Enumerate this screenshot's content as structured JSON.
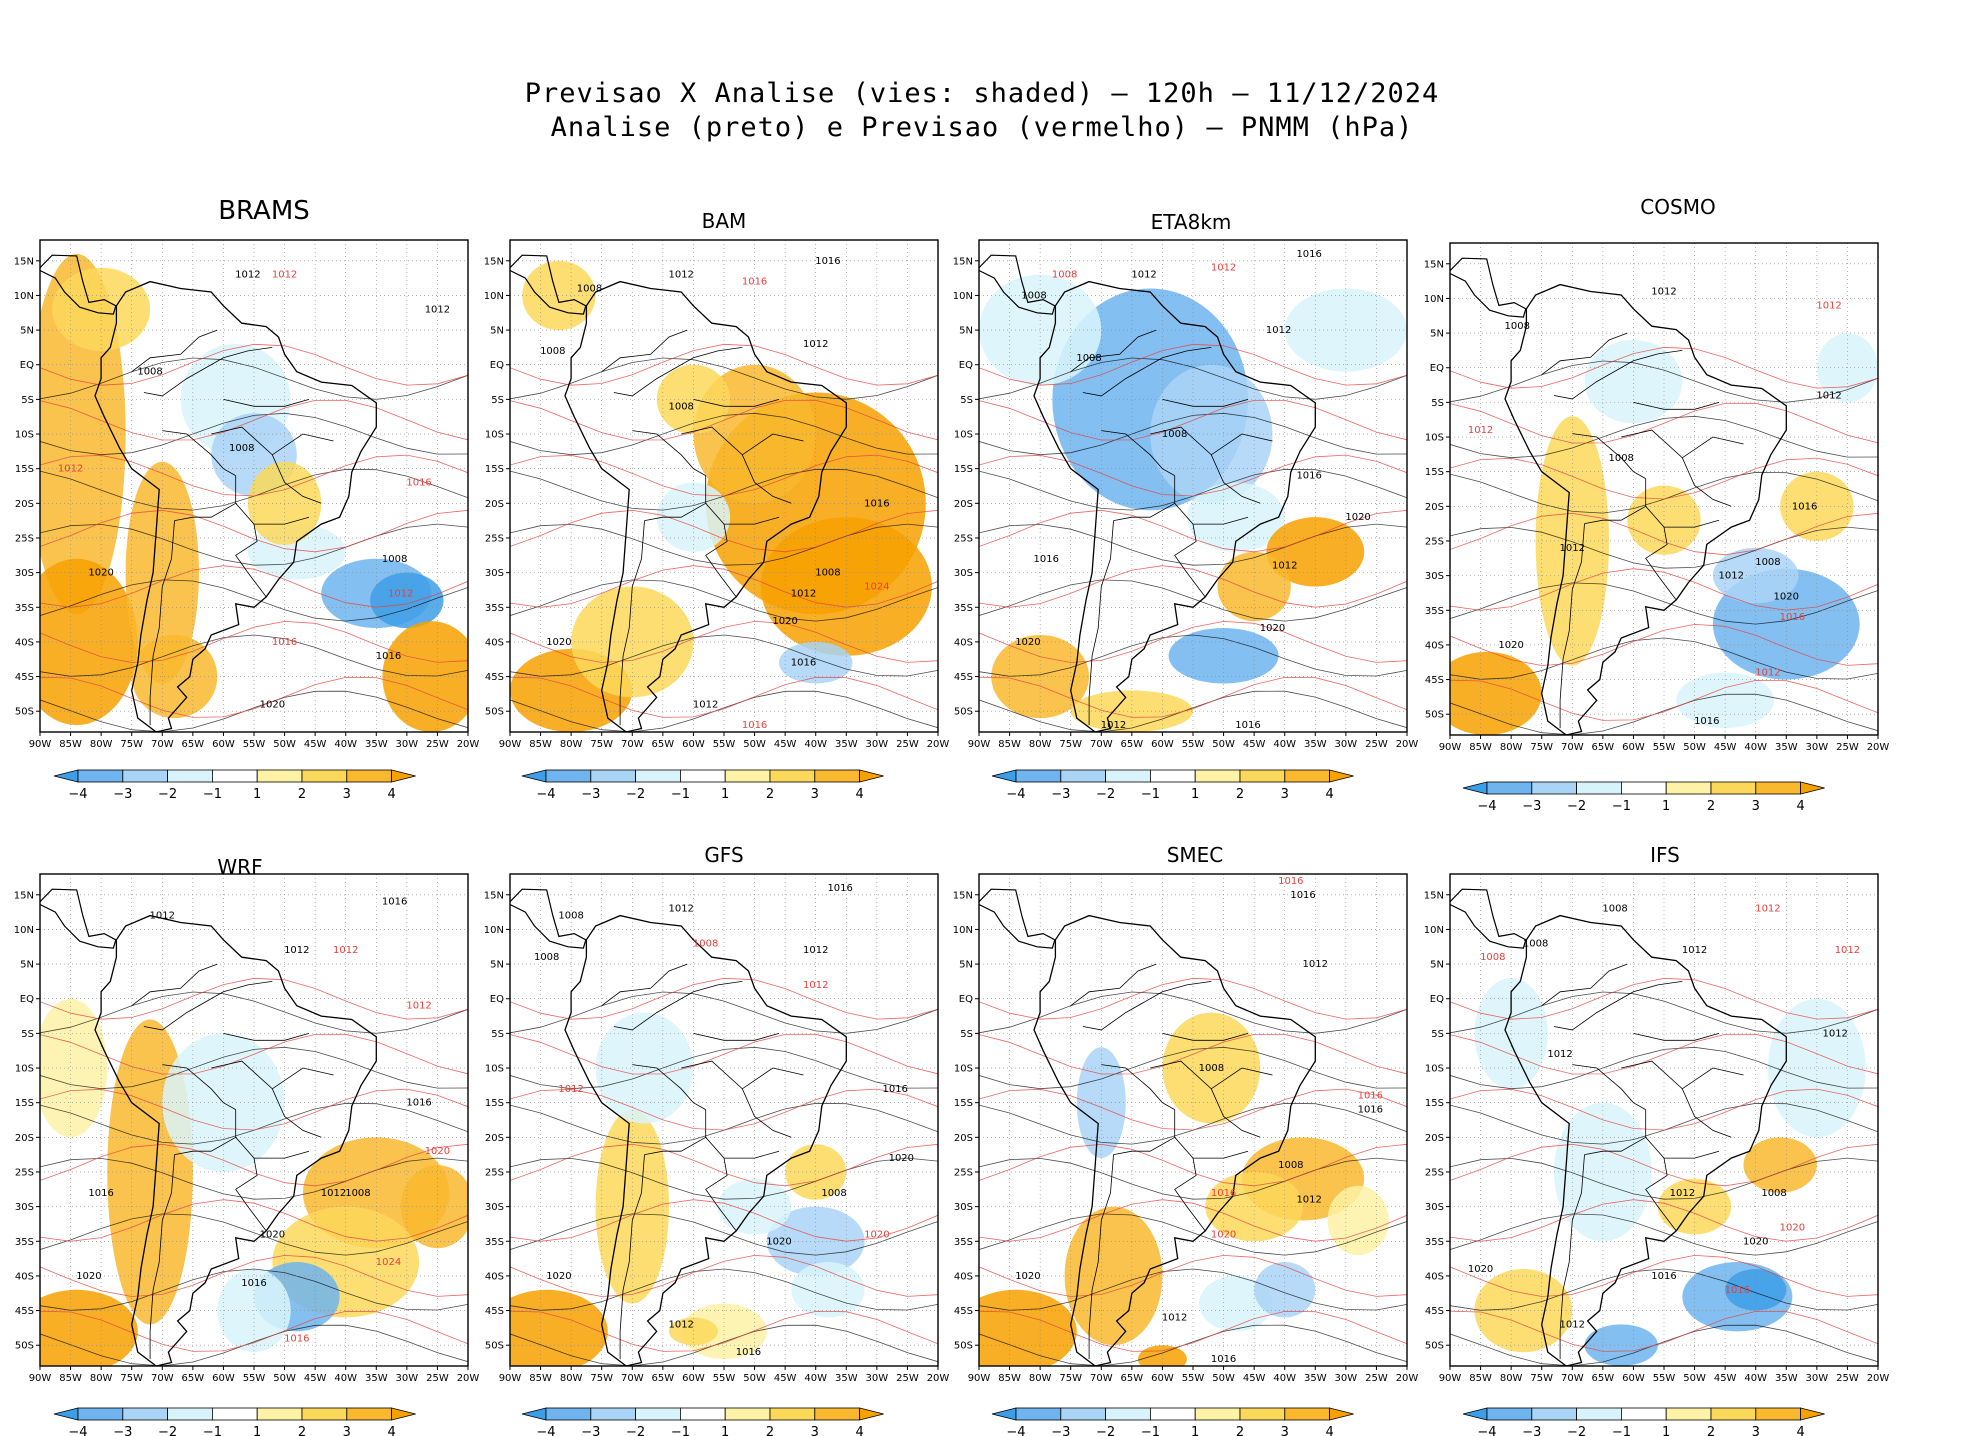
{
  "figure": {
    "title_line1": "Previsao X Analise (vies: shaded) – 120h – 11/12/2024",
    "title_line2": "Analise (preto) e Previsao (vermelho) – PNMM (hPa)"
  },
  "axes": {
    "lat_labels": [
      "15N",
      "10N",
      "5N",
      "EQ",
      "5S",
      "10S",
      "15S",
      "20S",
      "25S",
      "30S",
      "35S",
      "40S",
      "45S",
      "50S"
    ],
    "lon_labels": [
      "90W",
      "85W",
      "80W",
      "75W",
      "70W",
      "65W",
      "60W",
      "55W",
      "50W",
      "45W",
      "40W",
      "35W",
      "30W",
      "25W",
      "20W"
    ]
  },
  "colorbar": {
    "labels": [
      "-4",
      "-3",
      "-2",
      "-1",
      "1",
      "2",
      "3",
      "4"
    ],
    "colors": [
      "#3d9ee8",
      "#6fb4ee",
      "#a9d4f6",
      "#d8f4fa",
      "#ffffff",
      "#fdf2a6",
      "#fcd85a",
      "#f9b82e",
      "#f7a100"
    ]
  },
  "colors": {
    "analysis_contour": "#000000",
    "forecast_contour": "#e8403c",
    "coast": "#000000"
  },
  "panels": [
    {
      "name": "BRAMS",
      "isobars": [
        {
          "t": "1012",
          "c": "k",
          "lon": -56,
          "lat": 13
        },
        {
          "t": "1012",
          "c": "r",
          "lon": -50,
          "lat": 13
        },
        {
          "t": "1012",
          "c": "k",
          "lon": -25,
          "lat": 8
        },
        {
          "t": "1008",
          "c": "k",
          "lon": -72,
          "lat": -1
        },
        {
          "t": "1008",
          "c": "k",
          "lon": -57,
          "lat": -12
        },
        {
          "t": "1012",
          "c": "r",
          "lon": -85,
          "lat": -15
        },
        {
          "t": "1016",
          "c": "r",
          "lon": -28,
          "lat": -17
        },
        {
          "t": "1008",
          "c": "k",
          "lon": -32,
          "lat": -28
        },
        {
          "t": "1012",
          "c": "r",
          "lon": -31,
          "lat": -33
        },
        {
          "t": "1020",
          "c": "k",
          "lon": -80,
          "lat": -30
        },
        {
          "t": "1016",
          "c": "r",
          "lon": -50,
          "lat": -40
        },
        {
          "t": "1016",
          "c": "k",
          "lon": -33,
          "lat": -42
        },
        {
          "t": "1020",
          "c": "k",
          "lon": -52,
          "lat": -49
        }
      ]
    },
    {
      "name": "BAM",
      "isobars": [
        {
          "t": "1016",
          "c": "k",
          "lon": -38,
          "lat": 15
        },
        {
          "t": "1016",
          "c": "r",
          "lon": -50,
          "lat": 12
        },
        {
          "t": "1008",
          "c": "k",
          "lon": -77,
          "lat": 11
        },
        {
          "t": "1012",
          "c": "k",
          "lon": -62,
          "lat": 13
        },
        {
          "t": "1012",
          "c": "k",
          "lon": -40,
          "lat": 3
        },
        {
          "t": "1008",
          "c": "k",
          "lon": -83,
          "lat": 2
        },
        {
          "t": "1008",
          "c": "k",
          "lon": -62,
          "lat": -6
        },
        {
          "t": "1016",
          "c": "k",
          "lon": -30,
          "lat": -20
        },
        {
          "t": "1024",
          "c": "r",
          "lon": -30,
          "lat": -32
        },
        {
          "t": "1008",
          "c": "k",
          "lon": -38,
          "lat": -30
        },
        {
          "t": "1012",
          "c": "k",
          "lon": -42,
          "lat": -33
        },
        {
          "t": "1020",
          "c": "k",
          "lon": -45,
          "lat": -37
        },
        {
          "t": "1020",
          "c": "k",
          "lon": -82,
          "lat": -40
        },
        {
          "t": "1016",
          "c": "k",
          "lon": -42,
          "lat": -43
        },
        {
          "t": "1012",
          "c": "k",
          "lon": -58,
          "lat": -49
        },
        {
          "t": "1016",
          "c": "r",
          "lon": -50,
          "lat": -52
        }
      ]
    },
    {
      "name": "ETA8km",
      "isobars": [
        {
          "t": "1016",
          "c": "k",
          "lon": -36,
          "lat": 16
        },
        {
          "t": "1012",
          "c": "r",
          "lon": -50,
          "lat": 14
        },
        {
          "t": "1008",
          "c": "r",
          "lon": -76,
          "lat": 13
        },
        {
          "t": "1012",
          "c": "k",
          "lon": -63,
          "lat": 13
        },
        {
          "t": "1008",
          "c": "k",
          "lon": -81,
          "lat": 10
        },
        {
          "t": "1012",
          "c": "k",
          "lon": -41,
          "lat": 5
        },
        {
          "t": "1008",
          "c": "k",
          "lon": -72,
          "lat": 1
        },
        {
          "t": "1008",
          "c": "k",
          "lon": -58,
          "lat": -10
        },
        {
          "t": "1016",
          "c": "k",
          "lon": -36,
          "lat": -16
        },
        {
          "t": "1020",
          "c": "k",
          "lon": -28,
          "lat": -22
        },
        {
          "t": "1012",
          "c": "k",
          "lon": -40,
          "lat": -29
        },
        {
          "t": "1016",
          "c": "k",
          "lon": -79,
          "lat": -28
        },
        {
          "t": "1020",
          "c": "k",
          "lon": -42,
          "lat": -38
        },
        {
          "t": "1020",
          "c": "k",
          "lon": -82,
          "lat": -40
        },
        {
          "t": "1016",
          "c": "k",
          "lon": -46,
          "lat": -52
        },
        {
          "t": "1012",
          "c": "k",
          "lon": -68,
          "lat": -52
        }
      ]
    },
    {
      "name": "COSMO",
      "isobars": [
        {
          "t": "1012",
          "c": "k",
          "lon": -55,
          "lat": 11
        },
        {
          "t": "1012",
          "c": "r",
          "lon": -28,
          "lat": 9
        },
        {
          "t": "1008",
          "c": "k",
          "lon": -79,
          "lat": 6
        },
        {
          "t": "1012",
          "c": "k",
          "lon": -28,
          "lat": -4
        },
        {
          "t": "1012",
          "c": "r",
          "lon": -85,
          "lat": -9
        },
        {
          "t": "1008",
          "c": "k",
          "lon": -62,
          "lat": -13
        },
        {
          "t": "1016",
          "c": "k",
          "lon": -32,
          "lat": -20
        },
        {
          "t": "1012",
          "c": "k",
          "lon": -70,
          "lat": -26
        },
        {
          "t": "1008",
          "c": "k",
          "lon": -38,
          "lat": -28
        },
        {
          "t": "1012",
          "c": "k",
          "lon": -44,
          "lat": -30
        },
        {
          "t": "1020",
          "c": "k",
          "lon": -35,
          "lat": -33
        },
        {
          "t": "1016",
          "c": "r",
          "lon": -34,
          "lat": -36
        },
        {
          "t": "1020",
          "c": "k",
          "lon": -80,
          "lat": -40
        },
        {
          "t": "1012",
          "c": "r",
          "lon": -38,
          "lat": -44
        },
        {
          "t": "1016",
          "c": "k",
          "lon": -48,
          "lat": -51
        }
      ]
    },
    {
      "name": "WRF",
      "isobars": [
        {
          "t": "1016",
          "c": "k",
          "lon": -32,
          "lat": 14
        },
        {
          "t": "1012",
          "c": "k",
          "lon": -70,
          "lat": 12
        },
        {
          "t": "1012",
          "c": "k",
          "lon": -48,
          "lat": 7
        },
        {
          "t": "1012",
          "c": "r",
          "lon": -40,
          "lat": 7
        },
        {
          "t": "1012",
          "c": "r",
          "lon": -28,
          "lat": -1
        },
        {
          "t": "1016",
          "c": "k",
          "lon": -28,
          "lat": -15
        },
        {
          "t": "1020",
          "c": "r",
          "lon": -25,
          "lat": -22
        },
        {
          "t": "1012",
          "c": "k",
          "lon": -42,
          "lat": -28
        },
        {
          "t": "1008",
          "c": "k",
          "lon": -38,
          "lat": -28
        },
        {
          "t": "1016",
          "c": "k",
          "lon": -80,
          "lat": -28
        },
        {
          "t": "1020",
          "c": "k",
          "lon": -52,
          "lat": -34
        },
        {
          "t": "1024",
          "c": "r",
          "lon": -33,
          "lat": -38
        },
        {
          "t": "1020",
          "c": "k",
          "lon": -82,
          "lat": -40
        },
        {
          "t": "1016",
          "c": "r",
          "lon": -48,
          "lat": -49
        },
        {
          "t": "1016",
          "c": "k",
          "lon": -55,
          "lat": -41
        }
      ]
    },
    {
      "name": "GFS",
      "isobars": [
        {
          "t": "1016",
          "c": "k",
          "lon": -36,
          "lat": 16
        },
        {
          "t": "1012",
          "c": "k",
          "lon": -62,
          "lat": 13
        },
        {
          "t": "1008",
          "c": "r",
          "lon": -58,
          "lat": 8
        },
        {
          "t": "1008",
          "c": "k",
          "lon": -80,
          "lat": 12
        },
        {
          "t": "1008",
          "c": "k",
          "lon": -84,
          "lat": 6
        },
        {
          "t": "1012",
          "c": "k",
          "lon": -40,
          "lat": 7
        },
        {
          "t": "1012",
          "c": "r",
          "lon": -40,
          "lat": 2
        },
        {
          "t": "1012",
          "c": "r",
          "lon": -80,
          "lat": -13
        },
        {
          "t": "1016",
          "c": "k",
          "lon": -27,
          "lat": -13
        },
        {
          "t": "1020",
          "c": "k",
          "lon": -26,
          "lat": -23
        },
        {
          "t": "1008",
          "c": "k",
          "lon": -37,
          "lat": -28
        },
        {
          "t": "1020",
          "c": "k",
          "lon": -46,
          "lat": -35
        },
        {
          "t": "1020",
          "c": "r",
          "lon": -30,
          "lat": -34
        },
        {
          "t": "1020",
          "c": "k",
          "lon": -82,
          "lat": -40
        },
        {
          "t": "1012",
          "c": "k",
          "lon": -62,
          "lat": -47
        },
        {
          "t": "1016",
          "c": "k",
          "lon": -51,
          "lat": -51
        }
      ]
    },
    {
      "name": "SMEC",
      "isobars": [
        {
          "t": "1016",
          "c": "r",
          "lon": -39,
          "lat": 17
        },
        {
          "t": "1016",
          "c": "k",
          "lon": -37,
          "lat": 15
        },
        {
          "t": "1012",
          "c": "k",
          "lon": -35,
          "lat": 5
        },
        {
          "t": "1008",
          "c": "k",
          "lon": -52,
          "lat": -10
        },
        {
          "t": "1016",
          "c": "r",
          "lon": -26,
          "lat": -14
        },
        {
          "t": "1016",
          "c": "k",
          "lon": -26,
          "lat": -16
        },
        {
          "t": "1008",
          "c": "k",
          "lon": -39,
          "lat": -24
        },
        {
          "t": "1012",
          "c": "k",
          "lon": -36,
          "lat": -29
        },
        {
          "t": "1016",
          "c": "r",
          "lon": -50,
          "lat": -28
        },
        {
          "t": "1020",
          "c": "r",
          "lon": -50,
          "lat": -34
        },
        {
          "t": "1020",
          "c": "k",
          "lon": -82,
          "lat": -40
        },
        {
          "t": "1012",
          "c": "k",
          "lon": -58,
          "lat": -46
        },
        {
          "t": "1016",
          "c": "k",
          "lon": -50,
          "lat": -52
        }
      ]
    },
    {
      "name": "IFS",
      "isobars": [
        {
          "t": "1008",
          "c": "k",
          "lon": -63,
          "lat": 13
        },
        {
          "t": "1012",
          "c": "r",
          "lon": -38,
          "lat": 13
        },
        {
          "t": "1008",
          "c": "k",
          "lon": -76,
          "lat": 8
        },
        {
          "t": "1008",
          "c": "r",
          "lon": -83,
          "lat": 6
        },
        {
          "t": "1012",
          "c": "k",
          "lon": -50,
          "lat": 7
        },
        {
          "t": "1012",
          "c": "r",
          "lon": -25,
          "lat": 7
        },
        {
          "t": "1012",
          "c": "k",
          "lon": -27,
          "lat": -5
        },
        {
          "t": "1012",
          "c": "k",
          "lon": -72,
          "lat": -8
        },
        {
          "t": "1008",
          "c": "k",
          "lon": -37,
          "lat": -28
        },
        {
          "t": "1012",
          "c": "k",
          "lon": -52,
          "lat": -28
        },
        {
          "t": "1020",
          "c": "k",
          "lon": -40,
          "lat": -35
        },
        {
          "t": "1020",
          "c": "r",
          "lon": -34,
          "lat": -33
        },
        {
          "t": "1020",
          "c": "k",
          "lon": -85,
          "lat": -39
        },
        {
          "t": "1016",
          "c": "r",
          "lon": -43,
          "lat": -42
        },
        {
          "t": "1016",
          "c": "k",
          "lon": -55,
          "lat": -40
        },
        {
          "t": "1012",
          "c": "k",
          "lon": -70,
          "lat": -47
        }
      ]
    }
  ]
}
